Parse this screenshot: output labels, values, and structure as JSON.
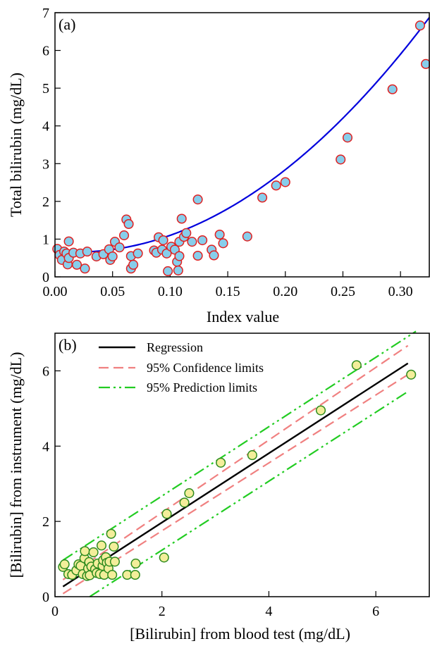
{
  "chart_data": [
    {
      "type": "scatter",
      "panel_label": "(a)",
      "xlabel": "Index value",
      "ylabel": "Total bilirubin (mg/dL)",
      "xlim": [
        0,
        0.325
      ],
      "ylim": [
        0,
        7
      ],
      "xticks": [
        "0.00",
        "0.05",
        "0.10",
        "0.15",
        "0.20",
        "0.25",
        "0.30"
      ],
      "xtick_values": [
        0,
        0.05,
        0.1,
        0.15,
        0.2,
        0.25,
        0.3
      ],
      "yticks": [
        "0",
        "1",
        "2",
        "3",
        "4",
        "5",
        "6",
        "7"
      ],
      "ytick_values": [
        0,
        1,
        2,
        3,
        4,
        5,
        6,
        7
      ],
      "marker_fill": "#87ceeb",
      "marker_edge": "#e02020",
      "fit_color": "#0000dd",
      "fit": {
        "kind": "quadratic",
        "coefficients": [
          0.68,
          -2.4,
          66.0
        ]
      },
      "points": [
        [
          0.002,
          0.74
        ],
        [
          0.004,
          0.58
        ],
        [
          0.006,
          0.45
        ],
        [
          0.008,
          0.67
        ],
        [
          0.01,
          0.62
        ],
        [
          0.011,
          0.33
        ],
        [
          0.012,
          0.5
        ],
        [
          0.012,
          0.94
        ],
        [
          0.016,
          0.64
        ],
        [
          0.019,
          0.32
        ],
        [
          0.022,
          0.62
        ],
        [
          0.026,
          0.22
        ],
        [
          0.028,
          0.67
        ],
        [
          0.036,
          0.54
        ],
        [
          0.042,
          0.6
        ],
        [
          0.047,
          0.73
        ],
        [
          0.048,
          0.45
        ],
        [
          0.05,
          0.54
        ],
        [
          0.052,
          0.93
        ],
        [
          0.056,
          0.78
        ],
        [
          0.06,
          1.1
        ],
        [
          0.062,
          1.52
        ],
        [
          0.064,
          1.4
        ],
        [
          0.066,
          0.55
        ],
        [
          0.066,
          0.22
        ],
        [
          0.068,
          0.32
        ],
        [
          0.072,
          0.62
        ],
        [
          0.086,
          0.7
        ],
        [
          0.088,
          0.64
        ],
        [
          0.09,
          1.05
        ],
        [
          0.093,
          0.72
        ],
        [
          0.094,
          0.97
        ],
        [
          0.097,
          0.62
        ],
        [
          0.098,
          0.15
        ],
        [
          0.101,
          0.8
        ],
        [
          0.104,
          0.72
        ],
        [
          0.106,
          0.4
        ],
        [
          0.107,
          0.17
        ],
        [
          0.108,
          0.93
        ],
        [
          0.108,
          0.55
        ],
        [
          0.11,
          1.54
        ],
        [
          0.112,
          1.06
        ],
        [
          0.114,
          1.16
        ],
        [
          0.119,
          0.93
        ],
        [
          0.124,
          2.05
        ],
        [
          0.124,
          0.56
        ],
        [
          0.128,
          0.97
        ],
        [
          0.136,
          0.72
        ],
        [
          0.138,
          0.57
        ],
        [
          0.143,
          1.12
        ],
        [
          0.146,
          0.89
        ],
        [
          0.167,
          1.07
        ],
        [
          0.18,
          2.1
        ],
        [
          0.192,
          2.42
        ],
        [
          0.2,
          2.51
        ],
        [
          0.248,
          3.11
        ],
        [
          0.254,
          3.69
        ],
        [
          0.293,
          4.97
        ],
        [
          0.317,
          6.66
        ],
        [
          0.322,
          5.64
        ]
      ]
    },
    {
      "type": "scatter",
      "panel_label": "(b)",
      "xlabel": "[Bilirubin] from blood test (mg/dL)",
      "ylabel": "[Bilirubin] from instrument (mg/dL)",
      "xlim": [
        0,
        7
      ],
      "ylim": [
        0,
        7
      ],
      "xticks": [
        "0",
        "2",
        "4",
        "6"
      ],
      "xtick_values": [
        0,
        2,
        4,
        6
      ],
      "yticks": [
        "0",
        "2",
        "4",
        "6"
      ],
      "ytick_values": [
        0,
        2,
        4,
        6
      ],
      "marker_fill": "#f3ee9a",
      "marker_edge": "#2e8b1e",
      "legend_position": "top-left",
      "legend": [
        {
          "label": "Regression",
          "color": "#000000",
          "style": "solid"
        },
        {
          "label": "95% Confidence limits",
          "color": "#f08080",
          "style": "dashed"
        },
        {
          "label": "95% Prediction limits",
          "color": "#22cc22",
          "style": "dashdotdot"
        }
      ],
      "lines": {
        "regression": [
          [
            0.15,
            0.27
          ],
          [
            6.6,
            6.2
          ]
        ],
        "confidence_upper": [
          [
            0.15,
            0.45
          ],
          [
            6.6,
            6.67
          ]
        ],
        "confidence_lower": [
          [
            0.15,
            0.08
          ],
          [
            6.6,
            5.9
          ]
        ],
        "prediction_upper": [
          [
            0.15,
            0.97
          ],
          [
            6.75,
            7.05
          ]
        ],
        "prediction_lower": [
          [
            0.65,
            0.0
          ],
          [
            6.6,
            5.45
          ]
        ]
      },
      "points": [
        [
          0.15,
          0.79
        ],
        [
          0.18,
          0.86
        ],
        [
          0.25,
          0.6
        ],
        [
          0.32,
          0.58
        ],
        [
          0.4,
          0.7
        ],
        [
          0.44,
          0.86
        ],
        [
          0.48,
          0.82
        ],
        [
          0.52,
          0.6
        ],
        [
          0.55,
          1.02
        ],
        [
          0.56,
          1.21
        ],
        [
          0.6,
          0.55
        ],
        [
          0.62,
          0.75
        ],
        [
          0.64,
          0.92
        ],
        [
          0.65,
          0.57
        ],
        [
          0.68,
          0.8
        ],
        [
          0.72,
          1.18
        ],
        [
          0.75,
          0.73
        ],
        [
          0.78,
          0.63
        ],
        [
          0.8,
          0.88
        ],
        [
          0.84,
          0.6
        ],
        [
          0.87,
          1.36
        ],
        [
          0.89,
          0.82
        ],
        [
          0.9,
          0.97
        ],
        [
          0.92,
          0.58
        ],
        [
          0.95,
          1.05
        ],
        [
          0.97,
          0.9
        ],
        [
          1.0,
          0.75
        ],
        [
          1.02,
          0.93
        ],
        [
          1.05,
          1.67
        ],
        [
          1.07,
          0.58
        ],
        [
          1.1,
          1.33
        ],
        [
          1.12,
          0.93
        ],
        [
          1.35,
          0.58
        ],
        [
          1.5,
          0.58
        ],
        [
          1.51,
          0.88
        ],
        [
          2.04,
          1.04
        ],
        [
          2.09,
          2.2
        ],
        [
          2.42,
          2.5
        ],
        [
          2.51,
          2.75
        ],
        [
          3.1,
          3.56
        ],
        [
          3.69,
          3.76
        ],
        [
          4.97,
          4.95
        ],
        [
          5.64,
          6.15
        ],
        [
          6.66,
          5.9
        ]
      ]
    }
  ]
}
